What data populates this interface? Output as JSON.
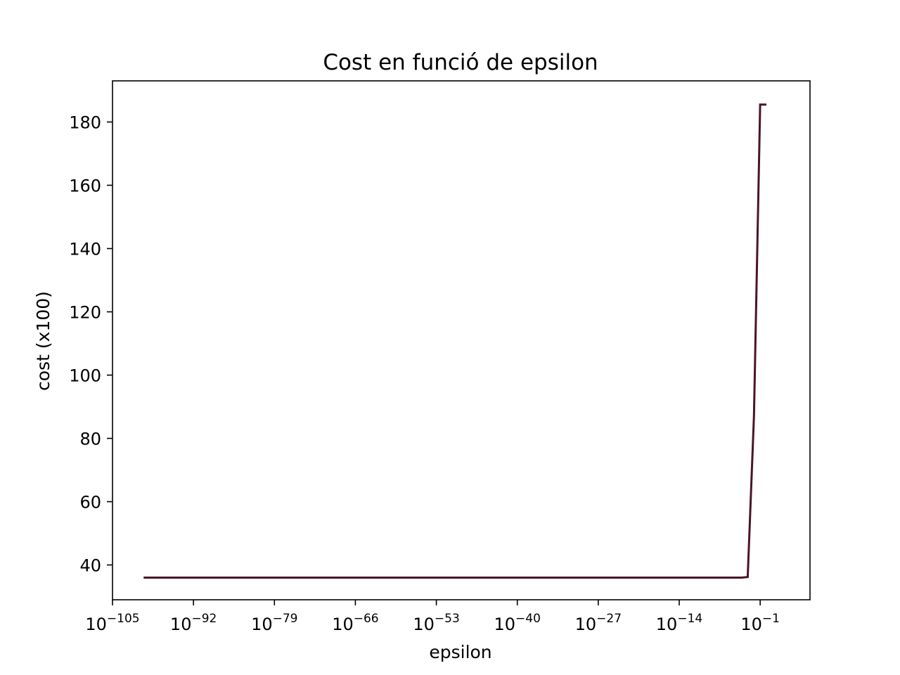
{
  "chart_data": {
    "type": "line",
    "title": "Cost en funció de epsilon",
    "xlabel": "epsilon",
    "ylabel": "cost (x100)",
    "xscale": "log",
    "xlim": [
      1e-105,
      10000000.0
    ],
    "ylim": [
      29,
      193
    ],
    "grid": false,
    "legend": "none",
    "line_color": "#4a1526",
    "x_ticks": [
      {
        "base": "10",
        "exp": "−105",
        "value": 1e-105
      },
      {
        "base": "10",
        "exp": "−92",
        "value": 1e-92
      },
      {
        "base": "10",
        "exp": "−79",
        "value": 1e-79
      },
      {
        "base": "10",
        "exp": "−66",
        "value": 1e-66
      },
      {
        "base": "10",
        "exp": "−53",
        "value": 1e-53
      },
      {
        "base": "10",
        "exp": "−40",
        "value": 1e-40
      },
      {
        "base": "10",
        "exp": "−27",
        "value": 1e-27
      },
      {
        "base": "10",
        "exp": "−14",
        "value": 1e-14
      },
      {
        "base": "10",
        "exp": "−1",
        "value": 0.1
      }
    ],
    "y_ticks": [
      {
        "label": "40",
        "value": 40
      },
      {
        "label": "60",
        "value": 60
      },
      {
        "label": "80",
        "value": 80
      },
      {
        "label": "100",
        "value": 100
      },
      {
        "label": "120",
        "value": 120
      },
      {
        "label": "140",
        "value": 140
      },
      {
        "label": "160",
        "value": 160
      },
      {
        "label": "180",
        "value": 180
      }
    ],
    "series": [
      {
        "x": [
          1e-100,
          1e-50,
          1e-10,
          1e-05,
          0.0001,
          0.001,
          0.01,
          0.1,
          1
        ],
        "y": [
          36,
          36,
          36,
          36,
          36,
          36.2,
          87,
          185.5,
          185.5
        ]
      }
    ]
  }
}
